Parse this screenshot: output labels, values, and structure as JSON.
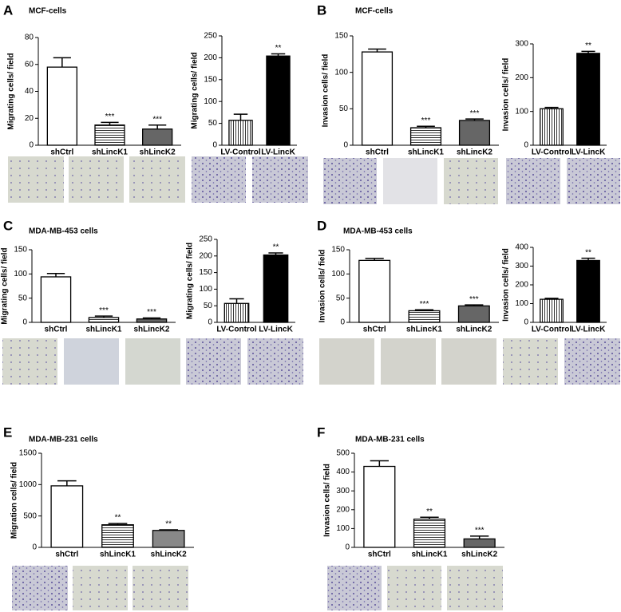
{
  "chart_data": [
    {
      "type": "bar",
      "panel": "A",
      "title": "MCF-cells",
      "ylabel": "Migrating cells/ field",
      "categories": [
        "shCtrl",
        "shLincK1",
        "shLincK2"
      ],
      "values": [
        58,
        15,
        12
      ],
      "errors": [
        7,
        2,
        3
      ],
      "annotations": [
        null,
        "***",
        "***"
      ],
      "fills": [
        "#ffffff",
        "hstripe",
        "#666666"
      ],
      "ylim": [
        0,
        80
      ],
      "yticks": [
        0,
        20,
        40,
        60,
        80
      ],
      "grid": false
    },
    {
      "type": "bar",
      "ylabel": "Migrating cells/ field",
      "categories": [
        "LV-Control",
        "LV-LincK"
      ],
      "values": [
        57,
        204
      ],
      "errors": [
        14,
        5
      ],
      "annotations": [
        null,
        "**"
      ],
      "fills": [
        "vstripe",
        "#000000"
      ],
      "ylim": [
        0,
        250
      ],
      "yticks": [
        0,
        50,
        100,
        150,
        200,
        250
      ],
      "grid": false
    },
    {
      "type": "bar",
      "panel": "B",
      "title": "MCF-cells",
      "ylabel": "Invasion cells/ field",
      "categories": [
        "shCtrl",
        "shLincK1",
        "shLincK2"
      ],
      "values": [
        128,
        24,
        34
      ],
      "errors": [
        4,
        2,
        2
      ],
      "annotations": [
        null,
        "***",
        "***"
      ],
      "fills": [
        "#ffffff",
        "hstripe",
        "#666666"
      ],
      "ylim": [
        0,
        150
      ],
      "yticks": [
        0,
        50,
        100,
        150
      ],
      "grid": false
    },
    {
      "type": "bar",
      "ylabel": "Invasion cells/ field",
      "categories": [
        "LV-Control",
        "LV-LincK"
      ],
      "values": [
        108,
        272
      ],
      "errors": [
        4,
        6
      ],
      "annotations": [
        null,
        "**"
      ],
      "fills": [
        "vstripe",
        "#000000"
      ],
      "ylim": [
        0,
        300
      ],
      "yticks": [
        0,
        100,
        200,
        300
      ],
      "grid": false
    },
    {
      "type": "bar",
      "panel": "C",
      "title": "MDA-MB-453 cells",
      "ylabel": "Migrating cells/ field",
      "categories": [
        "shCtrl",
        "shLincK1",
        "shLincK2"
      ],
      "values": [
        94,
        10,
        7
      ],
      "errors": [
        7,
        3,
        2
      ],
      "annotations": [
        null,
        "***",
        "***"
      ],
      "fills": [
        "#ffffff",
        "hstripe",
        "#666666"
      ],
      "ylim": [
        0,
        150
      ],
      "yticks": [
        0,
        50,
        100,
        150
      ],
      "grid": false
    },
    {
      "type": "bar",
      "ylabel": "Migrating cells/ field",
      "categories": [
        "LV-Control",
        "LV-LincK"
      ],
      "values": [
        57,
        203
      ],
      "errors": [
        14,
        6
      ],
      "annotations": [
        null,
        "**"
      ],
      "fills": [
        "vstripe",
        "#000000"
      ],
      "ylim": [
        0,
        250
      ],
      "yticks": [
        0,
        50,
        100,
        150,
        200,
        250
      ],
      "grid": false
    },
    {
      "type": "bar",
      "panel": "D",
      "title": "MDA-MB-453 cells",
      "ylabel": "Invasion cells/ field",
      "categories": [
        "shCtrl",
        "shLincK1",
        "shLincK2"
      ],
      "values": [
        128,
        24,
        34
      ],
      "errors": [
        4,
        2,
        2
      ],
      "annotations": [
        null,
        "***",
        "***"
      ],
      "fills": [
        "#ffffff",
        "hstripe",
        "#666666"
      ],
      "ylim": [
        0,
        150
      ],
      "yticks": [
        0,
        50,
        100,
        150
      ],
      "grid": false
    },
    {
      "type": "bar",
      "ylabel": "Invasion cells/ field",
      "categories": [
        "LV-Control",
        "LV-LincK"
      ],
      "values": [
        123,
        330
      ],
      "errors": [
        5,
        12
      ],
      "annotations": [
        null,
        "**"
      ],
      "fills": [
        "vstripe",
        "#000000"
      ],
      "ylim": [
        0,
        400
      ],
      "yticks": [
        0,
        100,
        200,
        300,
        400
      ],
      "grid": false
    },
    {
      "type": "bar",
      "panel": "E",
      "title": "MDA-MB-231 cells",
      "ylabel": "Migration cells/ field",
      "categories": [
        "shCtrl",
        "shLincK1",
        "shLincK2"
      ],
      "values": [
        980,
        360,
        270
      ],
      "errors": [
        80,
        20,
        10
      ],
      "annotations": [
        null,
        "**",
        "**"
      ],
      "fills": [
        "#ffffff",
        "hstripe",
        "#888888"
      ],
      "ylim": [
        0,
        1500
      ],
      "yticks": [
        0,
        500,
        1000,
        1500
      ],
      "grid": false
    },
    {
      "type": "bar",
      "panel": "F",
      "title": "MDA-MB-231 cells",
      "ylabel": "Invasion cells/ field",
      "categories": [
        "shCtrl",
        "shLincK1",
        "shLincK2"
      ],
      "values": [
        430,
        150,
        45
      ],
      "errors": [
        30,
        10,
        15
      ],
      "annotations": [
        null,
        "**",
        "***"
      ],
      "fills": [
        "#ffffff",
        "hstripe",
        "#666666"
      ],
      "ylim": [
        0,
        500
      ],
      "yticks": [
        0,
        100,
        200,
        300,
        400,
        500
      ],
      "grid": false
    }
  ]
}
